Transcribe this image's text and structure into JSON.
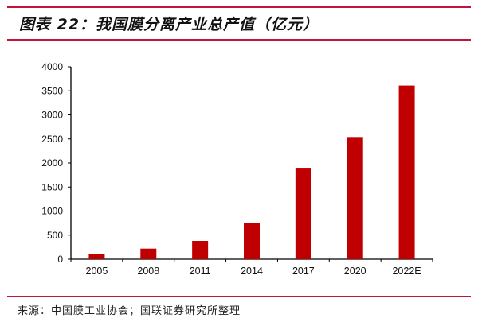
{
  "header": {
    "title": "图表 22：我国膜分离产业总产值（亿元）"
  },
  "footer": {
    "source": "来源：中国膜工业协会；国联证券研究所整理"
  },
  "colors": {
    "accent_rule": "#c0143c",
    "bar": "#c00000",
    "axis": "#000000"
  },
  "chart_data": {
    "type": "bar",
    "title": "我国膜分离产业总产值（亿元）",
    "xlabel": "",
    "ylabel": "亿元",
    "categories": [
      "2005",
      "2008",
      "2011",
      "2014",
      "2017",
      "2020",
      "2022E"
    ],
    "values": [
      110,
      220,
      380,
      750,
      1900,
      2540,
      3610
    ],
    "ylim": [
      0,
      4000
    ],
    "yticks": [
      0,
      500,
      1000,
      1500,
      2000,
      2500,
      3000,
      3500,
      4000
    ],
    "grid": false,
    "legend": null
  }
}
